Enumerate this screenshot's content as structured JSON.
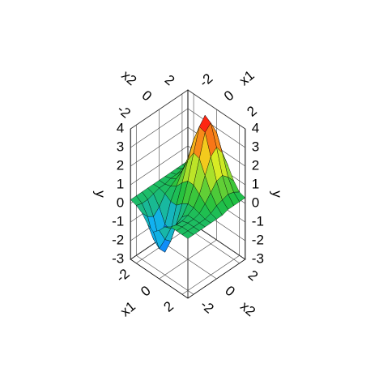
{
  "chart_data": {
    "type": "surface",
    "x_label": "x1",
    "z_label": "x2",
    "y_label": "y",
    "x1": [
      -2.5,
      -2,
      -1.5,
      -1,
      -0.5,
      0,
      0.5,
      1,
      1.5,
      2,
      2.5
    ],
    "x2": [
      -2.5,
      -2,
      -1.5,
      -1,
      -0.5,
      0,
      0.5,
      1,
      1.5,
      2,
      2.5
    ],
    "y": [
      [
        0.2,
        0.2,
        0.2,
        0.2,
        0.2,
        0.2,
        0.2,
        0.2,
        0.2,
        0.2,
        0.2
      ],
      [
        0.1,
        0,
        0,
        0.1,
        0.2,
        0.2,
        0.3,
        0.3,
        0.4,
        0.3,
        0.3
      ],
      [
        -0.1,
        -0.5,
        -0.7,
        -0.4,
        0.1,
        0.3,
        0.5,
        0.7,
        0.8,
        0.7,
        0.5
      ],
      [
        -0.5,
        -1.5,
        -1.8,
        -1.1,
        -0.1,
        0.5,
        1.1,
        1.6,
        1.7,
        1.4,
        0.9
      ],
      [
        -0.7,
        -1.8,
        -2.2,
        -1.3,
        -0.1,
        0.9,
        1.9,
        2.8,
        3.1,
        2.5,
        1.5
      ],
      [
        -0.4,
        -1.1,
        -1.4,
        -0.7,
        0.2,
        1.2,
        2.5,
        3.7,
        4.1,
        3.3,
        1.9
      ],
      [
        0,
        -0.3,
        -0.3,
        -0.1,
        0.4,
        1.2,
        2.4,
        3.6,
        3.9,
        3.2,
        1.9
      ],
      [
        0.2,
        0.1,
        0.1,
        0.2,
        0.4,
        0.9,
        1.7,
        2.5,
        2.8,
        2.3,
        1.4
      ],
      [
        0.2,
        0.2,
        0.2,
        0.2,
        0.3,
        0.6,
        1,
        1.4,
        1.5,
        1.2,
        0.8
      ],
      [
        0.2,
        0.2,
        0.2,
        0.2,
        0.2,
        0.3,
        0.5,
        0.6,
        0.7,
        0.6,
        0.4
      ],
      [
        0.2,
        0.2,
        0.2,
        0.2,
        0.2,
        0.2,
        0.2,
        0.3,
        0.3,
        0.3,
        0.3
      ]
    ],
    "x1lim": [
      -2.5,
      2.5
    ],
    "x2lim": [
      -2.5,
      2.5
    ],
    "ylim": [
      -3,
      4
    ],
    "x1ticks": [
      -2,
      0,
      2
    ],
    "x2ticks": [
      -2,
      0,
      2
    ],
    "yticks": [
      -3,
      -2,
      -1,
      0,
      1,
      2,
      3,
      4
    ],
    "colormap": [
      "#1010e0",
      "#10b0ff",
      "#20c040",
      "#f0f020",
      "#ff1010"
    ],
    "grid": true
  }
}
